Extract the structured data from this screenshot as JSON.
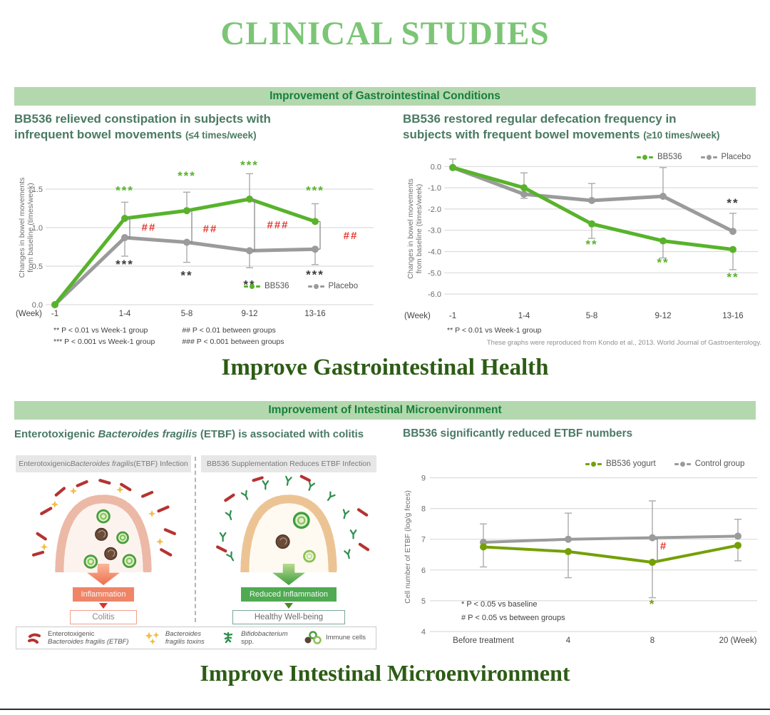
{
  "page": {
    "title": "CLINICAL STUDIES",
    "banner1": "Improvement of Gastrointestinal Conditions",
    "banner2": "Improvement of Intestinal Microenvironment",
    "section1_heading": "Improve Gastrointestinal Health",
    "section2_heading": "Improve Intestinal Microenvironment",
    "source_note": "These graphs were reproduced from Kondo et al., 2013. World Journal of Gastroenterology."
  },
  "colors": {
    "title_green": "#7cc576",
    "banner_bg": "#b4d8ad",
    "banner_text": "#157f3d",
    "heading_green": "#2d5c15",
    "chart_title_green": "#4a7a64",
    "bb536_green": "#58b32b",
    "olive_green": "#74a005",
    "placebo_gray": "#9b9b9b",
    "significance_red": "#e8392f",
    "inflammation_orange": "#f08467",
    "reduced_inflammation_green": "#4faa52",
    "etbf_rod_red": "#b43331",
    "toxin_yellow": "#f2bc43",
    "bifido_green": "#2f8f4e"
  },
  "chart_data": [
    {
      "type": "line",
      "title_main": "BB536 relieved constipation in subjects with\ninfrequent bowel movements ",
      "title_paren": "(≤4 times/week)",
      "ylabel_lines": [
        "Changes in bowel movements",
        "from baseline (times/week)"
      ],
      "x_prefix": "(Week)",
      "categories": [
        "-1",
        "1-4",
        "5-8",
        "9-12",
        "13-16"
      ],
      "ylim": [
        0,
        2.0
      ],
      "ytick_values": [
        0,
        0.5,
        1.0,
        1.5
      ],
      "ytick_labels": [
        "0.0",
        "0.5",
        "1.0",
        "1.5"
      ],
      "series": [
        {
          "name": "BB536",
          "color": "#58b32b",
          "values": [
            0,
            1.12,
            1.22,
            1.37,
            1.08
          ],
          "err_up": [
            0,
            0.21,
            0.24,
            0.33,
            0.23
          ],
          "err_down": [
            0,
            0,
            0,
            0,
            0
          ]
        },
        {
          "name": "Placebo",
          "color": "#9b9b9b",
          "values": [
            0,
            0.87,
            0.81,
            0.7,
            0.72
          ],
          "err_up": [
            0,
            0,
            0,
            0,
            0
          ],
          "err_down": [
            0,
            0.24,
            0.26,
            0.22,
            0.2
          ]
        }
      ],
      "annotations": [
        {
          "x": 1,
          "y": 1.43,
          "text": "***",
          "color": "#58b32b"
        },
        {
          "x": 2,
          "y": 1.62,
          "text": "***",
          "color": "#58b32b"
        },
        {
          "x": 3,
          "y": 1.76,
          "text": "***",
          "color": "#58b32b"
        },
        {
          "x": 4,
          "y": 1.43,
          "text": "***",
          "color": "#58b32b"
        },
        {
          "x": 1,
          "y": 0.47,
          "text": "***",
          "color": "#3c3c3c"
        },
        {
          "x": 2,
          "y": 0.33,
          "text": "**",
          "color": "#3c3c3c"
        },
        {
          "x": 3,
          "y": 0.21,
          "text": "**",
          "color": "#3c3c3c"
        },
        {
          "x": 4,
          "y": 0.34,
          "text": "***",
          "color": "#3c3c3c"
        },
        {
          "x": 1,
          "dx": 34,
          "y": 0.96,
          "text": "##",
          "color": "#e8392f"
        },
        {
          "x": 2,
          "dx": 33,
          "y": 0.94,
          "text": "##",
          "color": "#e8392f"
        },
        {
          "x": 3,
          "dx": 40,
          "y": 0.99,
          "text": "###",
          "color": "#e8392f"
        },
        {
          "x": 4,
          "dx": 50,
          "y": 0.85,
          "text": "##",
          "color": "#e8392f"
        }
      ],
      "brackets": [
        {
          "x": 1,
          "y1": 0.87,
          "y2": 1.12
        },
        {
          "x": 2,
          "y1": 0.81,
          "y2": 1.22
        },
        {
          "x": 3,
          "y1": 0.7,
          "y2": 1.37
        },
        {
          "x": 4,
          "y1": 0.72,
          "y2": 1.08
        }
      ],
      "footnotes_left": "**   P < 0.01 vs Week-1 group\n*** P < 0.001 vs Week-1 group",
      "footnotes_right": "##   P < 0.01 between groups\n### P < 0.001 between groups"
    },
    {
      "type": "line",
      "title_main": "BB536 restored regular defecation frequency in\nsubjects with frequent bowel movements ",
      "title_paren": "(≥10 times/week)",
      "ylabel_lines": [
        "Changes in bowel movements",
        "from baseline (times/week)"
      ],
      "x_prefix": "(Week)",
      "categories": [
        "-1",
        "1-4",
        "5-8",
        "9-12",
        "13-16"
      ],
      "ylim": [
        -6.6,
        0.75
      ],
      "ytick_values": [
        0,
        -1,
        -2,
        -3,
        -4,
        -5,
        -6
      ],
      "ytick_labels": [
        "0.0",
        "-1.0",
        "-2.0",
        "-3.0",
        "-4.0",
        "-5.0",
        "-6.0"
      ],
      "series": [
        {
          "name": "BB536",
          "color": "#58b32b",
          "values": [
            -0.05,
            -1.0,
            -2.7,
            -3.5,
            -3.9
          ],
          "err_up": [
            0,
            0,
            0,
            0,
            0
          ],
          "err_down": [
            0,
            0,
            0.68,
            0.8,
            0.95
          ]
        },
        {
          "name": "Placebo",
          "color": "#9b9b9b",
          "values": [
            -0.05,
            -1.3,
            -1.6,
            -1.4,
            -3.05
          ],
          "err_up": [
            0.4,
            1.0,
            0.8,
            1.35,
            0.85
          ],
          "err_down": [
            0,
            0.2,
            0,
            0,
            0
          ]
        }
      ],
      "annotations": [
        {
          "x": 2,
          "y": -3.85,
          "text": "**",
          "color": "#58b32b"
        },
        {
          "x": 3,
          "y": -4.7,
          "text": "**",
          "color": "#58b32b"
        },
        {
          "x": 4,
          "y": -5.4,
          "text": "**",
          "color": "#58b32b"
        },
        {
          "x": 4,
          "y": -1.9,
          "text": "**",
          "color": "#3c3c3c"
        }
      ],
      "brackets": [],
      "footnote": "** P < 0.01 vs Week-1 group"
    },
    {
      "type": "line",
      "title": "BB536 significantly reduced ETBF numbers",
      "ylabel_lines": [
        "Cell number of ETBF (log/g feces)"
      ],
      "categories": [
        "Before treatment",
        "4",
        "8",
        "20 (Week)"
      ],
      "ylim": [
        4,
        9.5
      ],
      "ytick_values": [
        4,
        5,
        6,
        7,
        8,
        9
      ],
      "ytick_labels": [
        "4",
        "5",
        "6",
        "7",
        "8",
        "9"
      ],
      "series": [
        {
          "name": "BB536 yogurt",
          "color": "#74a005",
          "values": [
            6.75,
            6.6,
            6.25,
            6.8
          ],
          "err_up": [
            0,
            0,
            0,
            0
          ],
          "err_down": [
            0.65,
            0.85,
            1.15,
            0.5
          ]
        },
        {
          "name": "Control group",
          "color": "#9b9b9b",
          "values": [
            6.9,
            7.0,
            7.05,
            7.1
          ],
          "err_up": [
            0.6,
            0.85,
            1.2,
            0.55
          ],
          "err_down": [
            0,
            0,
            0,
            0
          ]
        }
      ],
      "annotations": [
        {
          "x": 2,
          "dx": 16,
          "y": 6.67,
          "text": "#",
          "color": "#e8392f"
        },
        {
          "x": 2,
          "y": 4.77,
          "text": "*",
          "color": "#74a005"
        }
      ],
      "brackets": [
        {
          "x": 2,
          "y1": 6.28,
          "y2": 7.0
        }
      ],
      "footnotes": "* P < 0.05 vs baseline\n# P < 0.05 vs between groups"
    }
  ],
  "diagram": {
    "subtitle_parts": [
      "Enterotoxigenic ",
      "Bacteroides fragilis",
      " (ETBF) is associated with colitis"
    ],
    "panels": [
      {
        "header_parts": [
          "Enterotoxigenic ",
          "Bacteroides fragilis",
          " (ETBF) Infection"
        ],
        "arrow_label": "Inflammation",
        "outcome_label": "Colitis"
      },
      {
        "header_parts": [
          "BB536 Supplementation Reduces ETBF Infection"
        ],
        "arrow_label": "Reduced Inflammation",
        "outcome_label": "Healthy Well-being"
      }
    ],
    "legend_items": [
      {
        "icon": "etbf-rods-icon",
        "lines": [
          "Enterotoxigenic",
          "Bacteroides fragilis (ETBF)"
        ]
      },
      {
        "icon": "toxin-stars-icon",
        "lines": [
          "Bacteroides",
          "fragilis toxins"
        ]
      },
      {
        "icon": "bifidobacterium-icon",
        "lines": [
          "Bifidobacterium",
          "spp."
        ]
      },
      {
        "icon": "immune-cells-icon",
        "lines": [
          "Immune cells"
        ]
      }
    ]
  }
}
